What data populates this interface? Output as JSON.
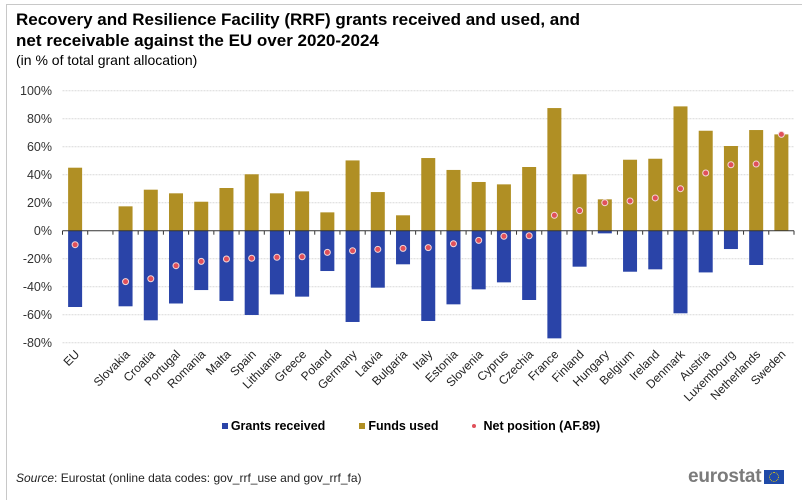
{
  "title_line1": "Recovery and Resilience Facility (RRF) grants received and used, and",
  "title_line2": "net receivable against the EU over 2020-2024",
  "subtitle": "(in % of total grant allocation)",
  "colors": {
    "grants_received": "#2a44a8",
    "funds_used": "#b08f24",
    "net_position": "#e0505a"
  },
  "legend": {
    "grants_received": "Grants received",
    "funds_used": "Funds used",
    "net_position": "Net position (AF.89)"
  },
  "source_label": "Source",
  "source_text": ": Eurostat (online data codes: gov_rrf_use and gov_rrf_fa)",
  "logo_text": "eurostat",
  "chart_data": {
    "type": "bar",
    "title": "Recovery and Resilience Facility (RRF) grants received and used, and net receivable against the EU over 2020-2024",
    "subtitle": "(in % of total grant allocation)",
    "xlabel": "",
    "ylabel": "",
    "ylim": [
      -80,
      100
    ],
    "yticks": [
      -80,
      -60,
      -40,
      -20,
      0,
      20,
      40,
      60,
      80,
      100
    ],
    "ytick_labels": [
      "-80%",
      "-60%",
      "-40%",
      "-20%",
      "0%",
      "20%",
      "40%",
      "60%",
      "80%",
      "100%"
    ],
    "grid": true,
    "legend_position": "bottom",
    "categories": [
      "EU",
      "",
      "Slovakia",
      "Croatia",
      "Portugal",
      "Romania",
      "Malta",
      "Spain",
      "Lithuania",
      "Greece",
      "Poland",
      "Germany",
      "Latvia",
      "Bulgaria",
      "Italy",
      "Estonia",
      "Slovenia",
      "Cyprus",
      "Czechia",
      "France",
      "Finland",
      "Hungary",
      "Belgium",
      "Ireland",
      "Denmark",
      "Austria",
      "Luxembourg",
      "Netherlands",
      "Sweden"
    ],
    "series": [
      {
        "name": "Grants received",
        "type": "bar",
        "values": [
          -54.5,
          null,
          -54,
          -64,
          -52,
          -42.4,
          -50.2,
          -60.2,
          -45.5,
          -47.1,
          -28.8,
          -65.2,
          -40.7,
          -24,
          -64.5,
          -52.6,
          -41.9,
          -36.9,
          -49.5,
          -76.9,
          -25.7,
          -1.9,
          -29.3,
          -27.6,
          -59,
          -29.8,
          -13.1,
          -24.5,
          0
        ]
      },
      {
        "name": "Funds used",
        "type": "bar",
        "values": [
          45,
          null,
          17.4,
          29.3,
          26.7,
          20.7,
          30.5,
          40.3,
          26.7,
          28.1,
          13.1,
          50.2,
          27.6,
          11,
          51.9,
          43.4,
          34.8,
          33.1,
          45.5,
          87.6,
          40.3,
          22.4,
          50.7,
          51.4,
          88.8,
          71.4,
          60.5,
          71.9,
          68.8
        ]
      },
      {
        "name": "Net position (AF.89)",
        "type": "scatter",
        "values": [
          -10,
          null,
          -36.4,
          -34.3,
          -25,
          -21.9,
          -20.2,
          -19.7,
          -19,
          -18.6,
          -15.5,
          -14.3,
          -13.3,
          -12.6,
          -12.1,
          -9.3,
          -6.9,
          -4,
          -3.6,
          11,
          14.3,
          20,
          21.2,
          23.4,
          30,
          41.2,
          47.1,
          47.6,
          68.8
        ]
      }
    ]
  }
}
